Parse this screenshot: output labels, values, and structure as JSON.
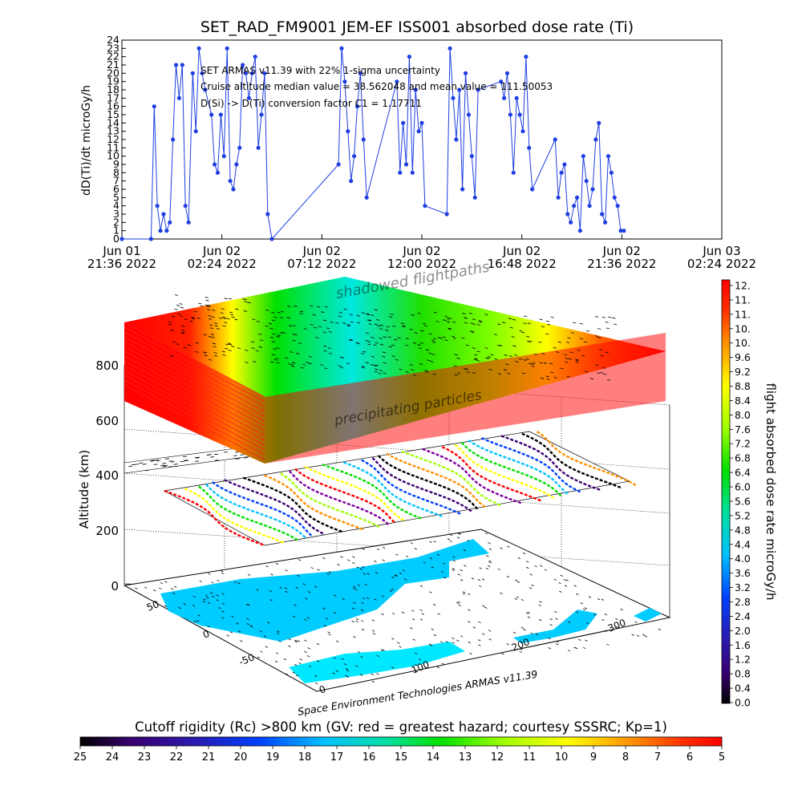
{
  "chart_data": [
    {
      "type": "line",
      "title": "SET_RAD_FM9001  JEM-EF ISS001 absorbed dose rate (Ti)",
      "ylabel": "dD(Ti)/dt microGy/h",
      "ylim": [
        0,
        24
      ],
      "y_ticks": [
        "0",
        "1",
        "2",
        "3",
        "4",
        "5",
        "6",
        "7",
        "8",
        "9",
        "10",
        "11",
        "12",
        "13",
        "14",
        "15",
        "16",
        "17",
        "18",
        "19",
        "20",
        "21",
        "22",
        "23",
        "24"
      ],
      "x_ticks": [
        {
          "line1": "Jun 01",
          "line2": "21:36 2022"
        },
        {
          "line1": "Jun 02",
          "line2": "02:24 2022"
        },
        {
          "line1": "Jun 02",
          "line2": "07:12 2022"
        },
        {
          "line1": "Jun 02",
          "line2": "12:00 2022"
        },
        {
          "line1": "Jun 02",
          "line2": "16:48 2022"
        },
        {
          "line1": "Jun 02",
          "line2": "21:36 2022"
        },
        {
          "line1": "Jun 03",
          "line2": "02:24 2022"
        }
      ],
      "annotations": [
        "SET ARMAS v11.39 with 22% 1-sigma uncertainty",
        "Cruise altitude median value = 38.562048 and mean value = 111.50053",
        "D(Si) -> D(Ti) conversion factor C1 = 1.17711"
      ],
      "series": [
        {
          "color": "#1f3fe0",
          "x_hours": [
            0,
            1.4,
            1.55,
            1.7,
            1.85,
            2.0,
            2.15,
            2.3,
            2.45,
            2.6,
            2.75,
            2.9,
            3.05,
            3.2,
            3.4,
            3.55,
            3.7,
            3.85,
            4.0,
            4.3,
            4.45,
            4.6,
            4.75,
            4.9,
            5.05,
            5.2,
            5.35,
            5.5,
            5.65,
            5.8,
            5.95,
            6.1,
            6.25,
            6.4,
            6.55,
            6.7,
            6.85,
            7.0,
            7.2,
            10.4,
            10.55,
            10.7,
            10.85,
            11.0,
            11.15,
            11.3,
            11.45,
            11.6,
            11.75,
            13.2,
            13.35,
            13.5,
            13.65,
            13.8,
            13.95,
            14.1,
            14.25,
            14.4,
            14.55,
            15.6,
            15.75,
            15.9,
            16.05,
            16.2,
            16.35,
            16.5,
            16.65,
            16.8,
            16.95,
            17.1,
            18.2,
            18.35,
            18.5,
            18.65,
            18.8,
            18.95,
            19.1,
            19.25,
            19.4,
            19.55,
            19.7,
            20.8,
            20.95,
            21.1,
            21.25,
            21.4,
            21.55,
            21.7,
            21.85,
            22.0,
            22.15,
            22.3,
            22.45,
            22.6,
            22.75,
            22.9,
            23.05,
            23.2,
            23.35,
            23.5,
            23.65,
            23.8,
            23.95,
            24.1
          ],
          "values": [
            0,
            0,
            16,
            4,
            1,
            3,
            1,
            2,
            12,
            21,
            17,
            21,
            4,
            2,
            20,
            13,
            23,
            20,
            18,
            15,
            9,
            8,
            15,
            10,
            23,
            7,
            6,
            9,
            11,
            21,
            20,
            17,
            20,
            22,
            11,
            15,
            20,
            3,
            0,
            9,
            23,
            19,
            13,
            7,
            10,
            16,
            20,
            12,
            5,
            19,
            8,
            14,
            9,
            22,
            8,
            18,
            13,
            14,
            4,
            3,
            23,
            17,
            12,
            18,
            6,
            20,
            15,
            10,
            5,
            18,
            19,
            17,
            20,
            15,
            8,
            17,
            15,
            13,
            22,
            11,
            6,
            12,
            5,
            8,
            9,
            3,
            2,
            4,
            5,
            1,
            10,
            7,
            4,
            6,
            12,
            14,
            3,
            2,
            10,
            8,
            5,
            4,
            1,
            1
          ]
        }
      ]
    },
    {
      "type": "heatmap",
      "title": "",
      "labels": [
        "shadowed flightpaths",
        "precipitating particles",
        "Space Environment Technologies ARMAS v11.39"
      ],
      "zlabel": "Altitude (km)",
      "z_ticks": [
        "0",
        "200",
        "400",
        "600",
        "800"
      ],
      "lon_ticks": [
        "0",
        "100",
        "200",
        "300"
      ],
      "lat_ticks": [
        "50",
        "0",
        "-50"
      ],
      "colorbar_right": {
        "label": "flight absorbed dose rate microGy/h",
        "range": [
          0,
          12
        ],
        "ticks": [
          "0.0",
          "0.4",
          "0.8",
          "1.2",
          "1.6",
          "2.0",
          "2.4",
          "2.8",
          "3.2",
          "3.6",
          "4.0",
          "4.4",
          "4.8",
          "5.2",
          "5.6",
          "6.0",
          "6.4",
          "6.8",
          "7.2",
          "7.6",
          "8.0",
          "8.4",
          "8.8",
          "9.2",
          "9.6",
          "10.",
          "10.",
          "11.",
          "11.",
          "12."
        ]
      },
      "colorbar_bottom": {
        "label": "Cutoff rigidity (Rc) >800 km (GV: red = greatest hazard; courtesy SSSRC; Kp=1)",
        "range": [
          25,
          5
        ],
        "ticks": [
          "25",
          "24",
          "23",
          "22",
          "21",
          "20",
          "19",
          "18",
          "17",
          "16",
          "15",
          "14",
          "13",
          "12",
          "11",
          "10",
          "9",
          "8",
          "7",
          "6",
          "5"
        ]
      }
    }
  ],
  "colors": {
    "series_line": "#1f3fe0",
    "hazard_red": "#ff0000",
    "ocean": "#00ccff"
  }
}
